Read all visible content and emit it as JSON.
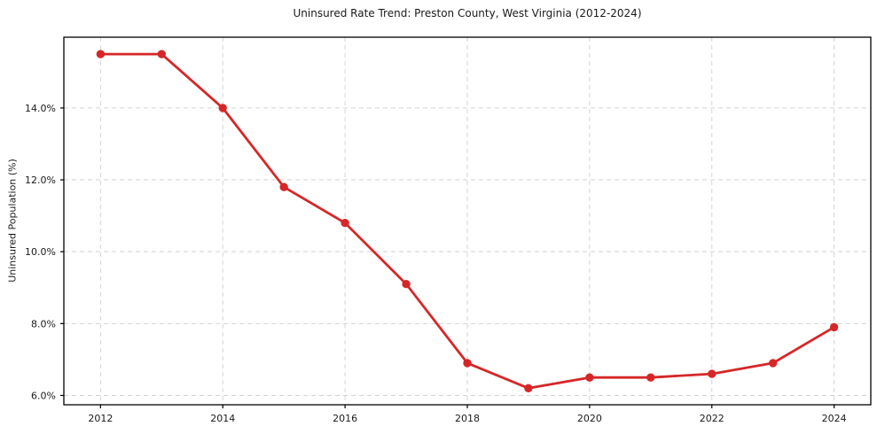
{
  "chart_data": {
    "type": "line",
    "title": "Uninsured Rate Trend: Preston County, West Virginia (2012-2024)",
    "xlabel": "",
    "ylabel": "Uninsured Population (%)",
    "x": [
      2012,
      2013,
      2014,
      2015,
      2016,
      2017,
      2018,
      2019,
      2020,
      2021,
      2022,
      2023,
      2024
    ],
    "y": [
      15.5,
      15.5,
      14.0,
      11.8,
      10.8,
      9.1,
      6.9,
      6.2,
      6.5,
      6.5,
      6.6,
      6.9,
      7.9
    ],
    "x_ticks": [
      2012,
      2014,
      2016,
      2018,
      2020,
      2022,
      2024
    ],
    "x_tick_labels": [
      "2012",
      "2014",
      "2016",
      "2018",
      "2020",
      "2022",
      "2024"
    ],
    "y_ticks": [
      6,
      8,
      10,
      12,
      14
    ],
    "y_tick_labels": [
      "6.0%",
      "8.0%",
      "10.0%",
      "12.0%",
      "14.0%"
    ],
    "xlim": [
      2011.4,
      2024.6
    ],
    "ylim": [
      5.74,
      15.97
    ],
    "grid": true,
    "grid_style": "dashed",
    "legend": false,
    "line_color": "#d62728",
    "marker": "o",
    "grid_color": "#d2d2d2",
    "axis_color": "#000000",
    "text_color": "#1a1a1a",
    "background": "#ffffff"
  }
}
